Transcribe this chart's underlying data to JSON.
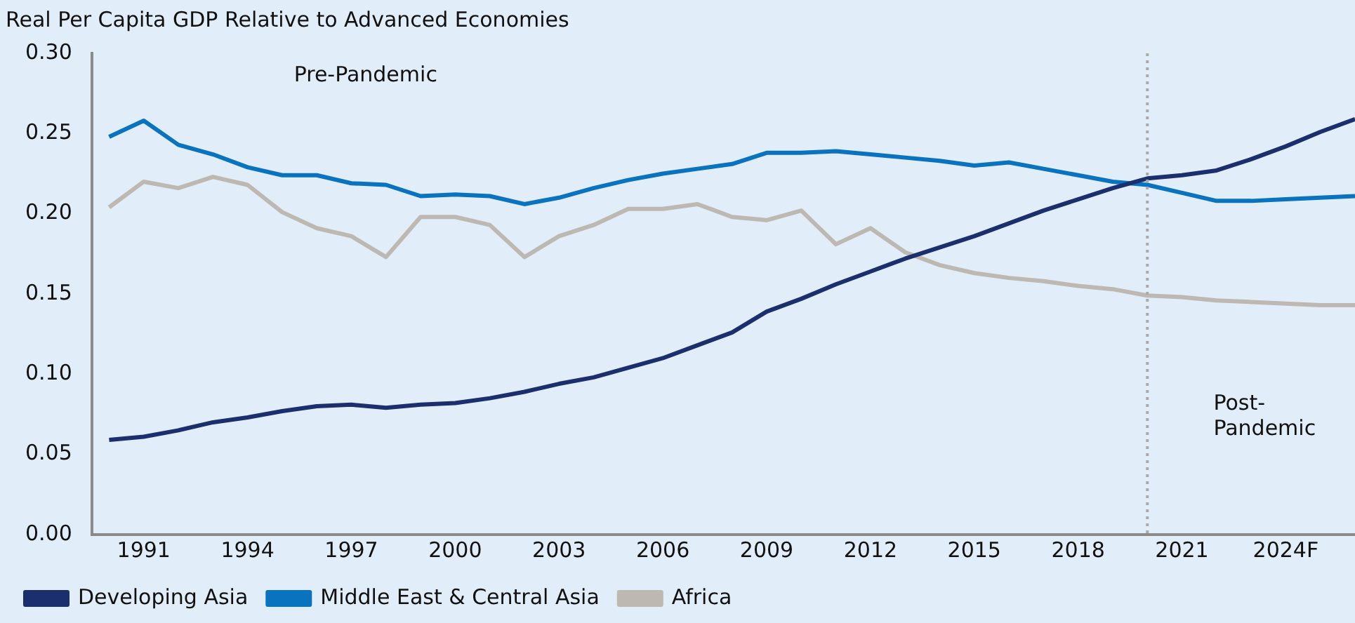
{
  "chart_data": {
    "type": "line",
    "title": "Real Per Capita GDP Relative to Advanced Economies",
    "x": [
      1990,
      1991,
      1992,
      1993,
      1994,
      1995,
      1996,
      1997,
      1998,
      1999,
      2000,
      2001,
      2002,
      2003,
      2004,
      2005,
      2006,
      2007,
      2008,
      2009,
      2010,
      2011,
      2012,
      2013,
      2014,
      2015,
      2016,
      2017,
      2018,
      2019,
      2020,
      2021,
      2022,
      2023,
      2024,
      2025,
      2026
    ],
    "series": [
      {
        "name": "Developing Asia",
        "color": "#1b2f6e",
        "values": [
          0.059,
          0.061,
          0.065,
          0.07,
          0.073,
          0.077,
          0.08,
          0.081,
          0.079,
          0.081,
          0.082,
          0.085,
          0.089,
          0.094,
          0.098,
          0.104,
          0.11,
          0.118,
          0.126,
          0.139,
          0.147,
          0.156,
          0.164,
          0.172,
          0.179,
          0.186,
          0.194,
          0.202,
          0.209,
          0.216,
          0.222,
          0.224,
          0.227,
          0.234,
          0.242,
          0.251,
          0.259
        ]
      },
      {
        "name": "Middle East & Central Asia",
        "color": "#0a73c0",
        "values": [
          0.248,
          0.258,
          0.243,
          0.237,
          0.229,
          0.224,
          0.224,
          0.219,
          0.218,
          0.211,
          0.212,
          0.211,
          0.206,
          0.21,
          0.216,
          0.221,
          0.225,
          0.228,
          0.231,
          0.238,
          0.238,
          0.239,
          0.237,
          0.235,
          0.233,
          0.23,
          0.232,
          0.228,
          0.224,
          0.22,
          0.218,
          0.213,
          0.208,
          0.208,
          0.209,
          0.21,
          0.211
        ]
      },
      {
        "name": "Africa",
        "color": "#bdb8b2",
        "values": [
          0.204,
          0.22,
          0.216,
          0.223,
          0.218,
          0.201,
          0.191,
          0.186,
          0.173,
          0.198,
          0.198,
          0.193,
          0.173,
          0.186,
          0.193,
          0.203,
          0.203,
          0.206,
          0.198,
          0.196,
          0.202,
          0.181,
          0.191,
          0.176,
          0.168,
          0.163,
          0.16,
          0.158,
          0.155,
          0.153,
          0.149,
          0.148,
          0.146,
          0.145,
          0.144,
          0.143,
          0.143
        ]
      }
    ],
    "xlim": [
      1989.5,
      2026
    ],
    "xticks": [
      1991,
      1994,
      1997,
      2000,
      2003,
      2006,
      2009,
      2012,
      2015,
      2018,
      2021,
      {
        "value": 2024,
        "label": "2024F"
      }
    ],
    "ylim": [
      0,
      0.3
    ],
    "yticks": [
      {
        "value": 0,
        "label": "0.00"
      },
      {
        "value": 0.05,
        "label": "0.05"
      },
      {
        "value": 0.1,
        "label": "0.10"
      },
      {
        "value": 0.15,
        "label": "0.15"
      },
      {
        "value": 0.2,
        "label": "0.20"
      },
      {
        "value": 0.25,
        "label": "0.25"
      },
      {
        "value": 0.3,
        "label": "0.30"
      }
    ],
    "ref_lines": [
      {
        "axis": "x",
        "value": 2020,
        "color": "#aaaaaa",
        "line_style": "dotted"
      }
    ],
    "annotations": [
      "Pre-Pandemic",
      "Post-Pandemic"
    ],
    "grid": false,
    "legend": "bottom",
    "marker": "none",
    "line_style": "solid"
  }
}
